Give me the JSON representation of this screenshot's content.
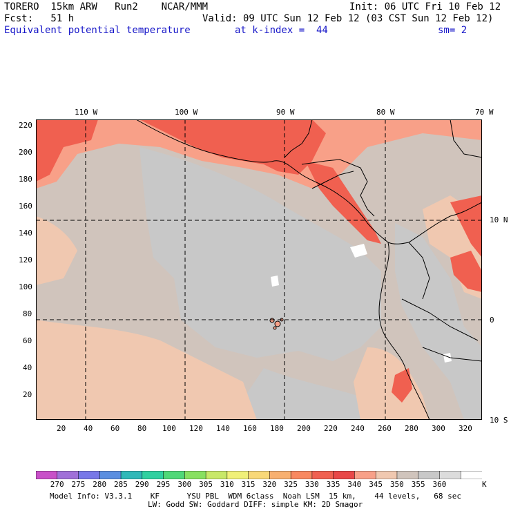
{
  "header": {
    "model": "TORERO  15km ARW   Run2    NCAR/MMM",
    "init": "Init: 06 UTC Fri 10 Feb 12",
    "fcst": "Fcst:   51 h",
    "valid": "Valid: 09 UTC Sun 12 Feb 12 (03 CST Sun 12 Feb 12)",
    "field": "Equivalent potential temperature",
    "level": "at k-index =  44",
    "smooth": "sm= 2"
  },
  "map": {
    "top_lon_labels": [
      "110 W",
      "100 W",
      "90 W",
      "80 W",
      "70 W"
    ],
    "right_lat_labels": [
      "10 N",
      "0",
      "10 S"
    ],
    "y_ticks": [
      "220",
      "200",
      "180",
      "160",
      "140",
      "120",
      "100",
      "80",
      "60",
      "40",
      "20"
    ],
    "x_ticks": [
      "20",
      "40",
      "60",
      "80",
      "100",
      "120",
      "140",
      "160",
      "180",
      "200",
      "220",
      "240",
      "260",
      "280",
      "300",
      "320"
    ]
  },
  "colorbar": {
    "unit": "K",
    "labels": [
      "270",
      "275",
      "280",
      "285",
      "290",
      "295",
      "300",
      "305",
      "310",
      "315",
      "320",
      "325",
      "330",
      "335",
      "340",
      "345",
      "350",
      "355",
      "360"
    ],
    "colors": [
      "#c850c8",
      "#a070d8",
      "#7878e8",
      "#5a8ee0",
      "#30b8b8",
      "#30d0a0",
      "#50d878",
      "#88e060",
      "#c8e868",
      "#f0f078",
      "#f8d878",
      "#f8b070",
      "#f88860",
      "#f06050",
      "#e84848",
      "#f8a088",
      "#f0c8b0",
      "#d0c4bc",
      "#c8c8c8",
      "#dcdcdc",
      "#ffffff"
    ]
  },
  "footer": {
    "line1": "Model Info: V3.3.1    KF      YSU PBL  WDM 6class  Noah LSM  15 km,    44 levels,   68 sec",
    "line2": "LW: Godd SW: Goddard DIFF: simple KM: 2D Smagor"
  }
}
